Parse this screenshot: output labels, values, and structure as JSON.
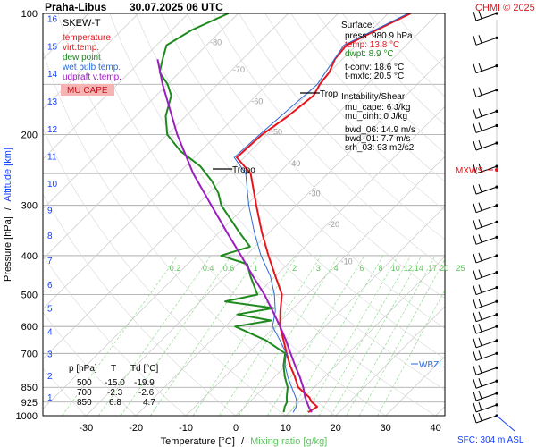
{
  "header": {
    "title": "Praha-Libus",
    "datetime": "30.07.2025 06 UTC",
    "copyright": "CHMI © 2025"
  },
  "legend": {
    "title": "SKEW-T",
    "items": [
      {
        "label": "temperature",
        "color": "#e8141c"
      },
      {
        "label": "virt.temp.",
        "color": "#e8141c"
      },
      {
        "label": "dew point",
        "color": "#1e8a1e"
      },
      {
        "label": "wet bulb temp.",
        "color": "#2a6ad6"
      },
      {
        "label": "udpraft v.temp.",
        "color": "#9b1fbf"
      }
    ],
    "cape_label": "MU CAPE",
    "cape_color": "#f5b3b3"
  },
  "surface": {
    "title": "Surface:",
    "press": "press: 980.9 hPa",
    "temp": "temp: 13.8 °C",
    "dwpt": "dwpt: 8.9 °C",
    "tconv": "t-conv: 18.6 °C",
    "tmxfc": "t-mxfc: 20.5 °C"
  },
  "instability": {
    "title": "Instability/Shear:",
    "mu_cape": "mu_cape: 6 J/kg",
    "mu_cinh": "mu_cinh: 0 J/kg",
    "bwd_06": "bwd_06: 14.9 m/s",
    "bwd_01": "bwd_01: 7.7 m/s",
    "srh_03": "srh_03: 93 m2/s2"
  },
  "table": {
    "headers": [
      "p [hPa]",
      "T",
      "Td [°C]"
    ],
    "rows": [
      [
        "500",
        "-15.0",
        "-19.9"
      ],
      [
        "700",
        "-2.3",
        "-2.6"
      ],
      [
        "850",
        "6.8",
        "4.7"
      ]
    ]
  },
  "labels": {
    "trop_upper": "Trop",
    "tropo": "Tropo",
    "mxws": "MXWS",
    "wbzl": "WBZL",
    "sfc": "SFC: 304 m ASL"
  },
  "axes": {
    "xlabel_temp": "Temperature [°C]",
    "xlabel_sep": "/",
    "xlabel_mix": "Mixing ratio [g/kg]",
    "ylabel_p": "Pressure [hPa]",
    "ylabel_sep": "/",
    "ylabel_alt": "Altitude [km]"
  },
  "colors": {
    "temperature": "#e8141c",
    "dewpoint": "#1e8a1e",
    "wetbulb": "#2a6ad6",
    "parcel": "#9b1fbf",
    "isobar": "#a0a0a0",
    "isotherm": "#c8c8c8",
    "mixing": "#8fdc8f",
    "altitude": "#1540ff"
  },
  "chart_data": {
    "type": "line",
    "xlim": [
      -35,
      44
    ],
    "ylim": [
      1000,
      100
    ],
    "yscale": "log",
    "skew": "45deg",
    "grid": true,
    "pressure_ticks": [
      100,
      200,
      300,
      400,
      500,
      600,
      700,
      850,
      925,
      1000
    ],
    "temperature_ticks": [
      -30,
      -20,
      -10,
      0,
      10,
      20,
      30,
      40
    ],
    "altitude_ticks": [
      1,
      2,
      3,
      4,
      5,
      6,
      7,
      8,
      9,
      10,
      11,
      12,
      13,
      14,
      15,
      16
    ],
    "isotherm_labels": [
      -80,
      -70,
      -60,
      -50,
      -40,
      -30,
      -20,
      -10
    ],
    "mixing_ratio_labels": [
      "0.2",
      "0.4",
      "0.6",
      "1",
      "2",
      "3",
      "4",
      "6",
      "8",
      "10",
      "12",
      "14",
      "17",
      "20",
      "25"
    ],
    "series": [
      {
        "name": "temperature",
        "points": [
          [
            980.9,
            13.8
          ],
          [
            950,
            14.5
          ],
          [
            925,
            12.5
          ],
          [
            900,
            11.0
          ],
          [
            850,
            6.8
          ],
          [
            800,
            4.0
          ],
          [
            750,
            0.8
          ],
          [
            700,
            -2.3
          ],
          [
            650,
            -5.5
          ],
          [
            600,
            -9.0
          ],
          [
            550,
            -12.0
          ],
          [
            500,
            -15.0
          ],
          [
            450,
            -20.0
          ],
          [
            400,
            -25.5
          ],
          [
            350,
            -31.5
          ],
          [
            300,
            -38.0
          ],
          [
            250,
            -45.5
          ],
          [
            228,
            -51.5
          ],
          [
            200,
            -51.0
          ],
          [
            180,
            -49.5
          ],
          [
            160,
            -48.5
          ],
          [
            150,
            -49.5
          ],
          [
            140,
            -50.0
          ],
          [
            130,
            -51.5
          ],
          [
            120,
            -52.0
          ],
          [
            110,
            -49.0
          ],
          [
            100,
            -45.5
          ]
        ]
      },
      {
        "name": "dew point",
        "points": [
          [
            980.9,
            8.9
          ],
          [
            950,
            8.0
          ],
          [
            925,
            7.5
          ],
          [
            900,
            6.5
          ],
          [
            850,
            4.7
          ],
          [
            800,
            2.0
          ],
          [
            750,
            -0.5
          ],
          [
            700,
            -2.6
          ],
          [
            650,
            -9.0
          ],
          [
            600,
            -18.0
          ],
          [
            580,
            -12.0
          ],
          [
            560,
            -20.0
          ],
          [
            540,
            -14.0
          ],
          [
            520,
            -25.0
          ],
          [
            500,
            -19.9
          ],
          [
            450,
            -25.0
          ],
          [
            420,
            -28.0
          ],
          [
            400,
            -35.0
          ],
          [
            380,
            -31.0
          ],
          [
            350,
            -36.0
          ],
          [
            300,
            -45.0
          ],
          [
            280,
            -48.0
          ],
          [
            260,
            -52.0
          ],
          [
            240,
            -57.0
          ],
          [
            220,
            -64.0
          ],
          [
            200,
            -70.0
          ],
          [
            180,
            -74.0
          ],
          [
            160,
            -77.0
          ],
          [
            150,
            -80.0
          ],
          [
            140,
            -84.0
          ],
          [
            130,
            -86.0
          ],
          [
            120,
            -88.0
          ],
          [
            110,
            -86.0
          ],
          [
            100,
            -82.0
          ]
        ]
      },
      {
        "name": "wet bulb temp.",
        "points": [
          [
            980.9,
            10.8
          ],
          [
            950,
            10.3
          ],
          [
            925,
            9.5
          ],
          [
            900,
            8.3
          ],
          [
            850,
            5.5
          ],
          [
            800,
            2.6
          ],
          [
            750,
            -0.2
          ],
          [
            700,
            -2.4
          ],
          [
            650,
            -6.2
          ],
          [
            600,
            -10.5
          ],
          [
            550,
            -13.0
          ],
          [
            500,
            -16.5
          ],
          [
            450,
            -21.0
          ],
          [
            400,
            -27.0
          ],
          [
            350,
            -33.0
          ],
          [
            300,
            -39.5
          ],
          [
            250,
            -46.5
          ],
          [
            228,
            -52.0
          ],
          [
            200,
            -51.5
          ],
          [
            150,
            -50.0
          ],
          [
            120,
            -52.5
          ],
          [
            100,
            -46.0
          ]
        ]
      },
      {
        "name": "udpraft v.temp.",
        "points": [
          [
            980.9,
            14.5
          ],
          [
            950,
            12.8
          ],
          [
            925,
            11.5
          ],
          [
            900,
            10.2
          ],
          [
            850,
            7.8
          ],
          [
            800,
            5.0
          ],
          [
            750,
            1.8
          ],
          [
            700,
            -1.5
          ],
          [
            650,
            -5.0
          ],
          [
            600,
            -9.0
          ],
          [
            550,
            -13.5
          ],
          [
            500,
            -18.5
          ],
          [
            450,
            -24.5
          ],
          [
            400,
            -31.0
          ],
          [
            350,
            -38.5
          ],
          [
            300,
            -47.0
          ],
          [
            250,
            -57.0
          ],
          [
            200,
            -68.0
          ],
          [
            150,
            -81.0
          ],
          [
            130,
            -87.0
          ]
        ]
      }
    ]
  }
}
